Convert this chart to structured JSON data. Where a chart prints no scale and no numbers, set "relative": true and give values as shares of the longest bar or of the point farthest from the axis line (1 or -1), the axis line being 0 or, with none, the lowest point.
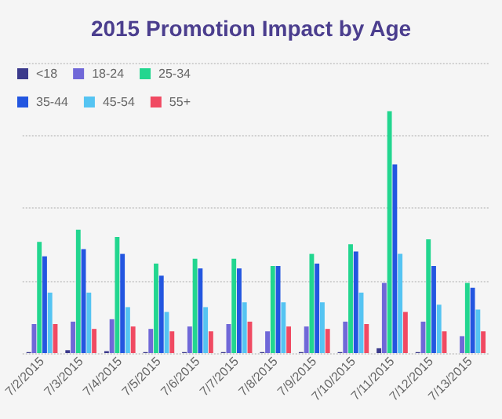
{
  "chart_data": {
    "type": "bar",
    "title": "2015 Promotion Impact by Age",
    "relative": true,
    "grid": "y",
    "legend": "top left",
    "categories": [
      "7/2/2015",
      "7/3/2015",
      "7/4/2015",
      "7/5/2015",
      "7/6/2015",
      "7/7/2015",
      "7/8/2015",
      "7/9/2015",
      "7/10/2015",
      "7/11/2015",
      "7/12/2015",
      "7/13/2015"
    ],
    "series": [
      {
        "name": "<18",
        "color": "#3b3a8c",
        "values": [
          0.004,
          0.012,
          0.008,
          0.004,
          0.004,
          0.004,
          0.004,
          0.004,
          0.004,
          0.02,
          0.004,
          0
        ]
      },
      {
        "name": "18-24",
        "color": "#7068d8",
        "values": [
          0.12,
          0.13,
          0.14,
          0.1,
          0.11,
          0.12,
          0.09,
          0.11,
          0.13,
          0.29,
          0.13,
          0.07
        ]
      },
      {
        "name": "25-34",
        "color": "#22d68f",
        "values": [
          0.46,
          0.51,
          0.48,
          0.37,
          0.39,
          0.39,
          0.36,
          0.41,
          0.45,
          1,
          0.47,
          0.29
        ]
      },
      {
        "name": "35-44",
        "color": "#2356e0",
        "values": [
          0.4,
          0.43,
          0.41,
          0.32,
          0.35,
          0.35,
          0.36,
          0.37,
          0.42,
          0.78,
          0.36,
          0.27
        ]
      },
      {
        "name": "45-54",
        "color": "#55c4f2",
        "values": [
          0.25,
          0.25,
          0.19,
          0.17,
          0.19,
          0.21,
          0.21,
          0.21,
          0.25,
          0.41,
          0.2,
          0.18
        ]
      },
      {
        "name": "55+",
        "color": "#f04a62",
        "values": [
          0.12,
          0.1,
          0.11,
          0.09,
          0.09,
          0.13,
          0.11,
          0.1,
          0.12,
          0.17,
          0.09,
          0.09
        ]
      }
    ]
  }
}
